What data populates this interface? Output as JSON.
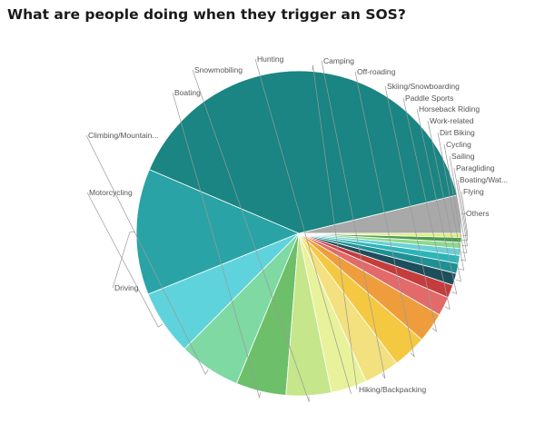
{
  "chart_data": {
    "type": "pie",
    "title": "What are people doing when they trigger an SOS?",
    "slices": [
      {
        "label": "Others",
        "value": 3.8,
        "color": "#a9a9a9"
      },
      {
        "label": "Hiking/Backpacking",
        "value": 40.0,
        "color": "#1a8582"
      },
      {
        "label": "Driving",
        "value": 12.6,
        "color": "#29a3a6"
      },
      {
        "label": "Motorcycling",
        "value": 6.5,
        "color": "#5fd3dc"
      },
      {
        "label": "Climbing/Mountain...",
        "value": 6.2,
        "color": "#7ed9a3"
      },
      {
        "label": "Boating",
        "value": 5.0,
        "color": "#6dbf6a"
      },
      {
        "label": "Snowmobiling",
        "value": 4.5,
        "color": "#c5e68a"
      },
      {
        "label": "Hunting",
        "value": 3.6,
        "color": "#e8f29a"
      },
      {
        "label": "Camping",
        "value": 3.5,
        "color": "#f3e07e"
      },
      {
        "label": "Off-roading",
        "value": 3.4,
        "color": "#f5c842"
      },
      {
        "label": "Skiing/Snowboarding",
        "value": 3.0,
        "color": "#ef9d3c"
      },
      {
        "label": "Paddle Sports",
        "value": 1.9,
        "color": "#e26a6a"
      },
      {
        "label": "Horseback Riding",
        "value": 1.3,
        "color": "#c43d3d"
      },
      {
        "label": "Work-related",
        "value": 1.2,
        "color": "#1d4e5c"
      },
      {
        "label": "Dirt Biking",
        "value": 1.0,
        "color": "#1f8f93"
      },
      {
        "label": "Cycling",
        "value": 0.8,
        "color": "#2bb5b9"
      },
      {
        "label": "Sailing",
        "value": 0.7,
        "color": "#6ad0d6"
      },
      {
        "label": "Paragliding",
        "value": 0.6,
        "color": "#8fd88f"
      },
      {
        "label": "Boating/Wat...",
        "value": 0.5,
        "color": "#4d9c4f"
      },
      {
        "label": "Flying",
        "value": 0.4,
        "color": "#dff07a"
      }
    ]
  }
}
